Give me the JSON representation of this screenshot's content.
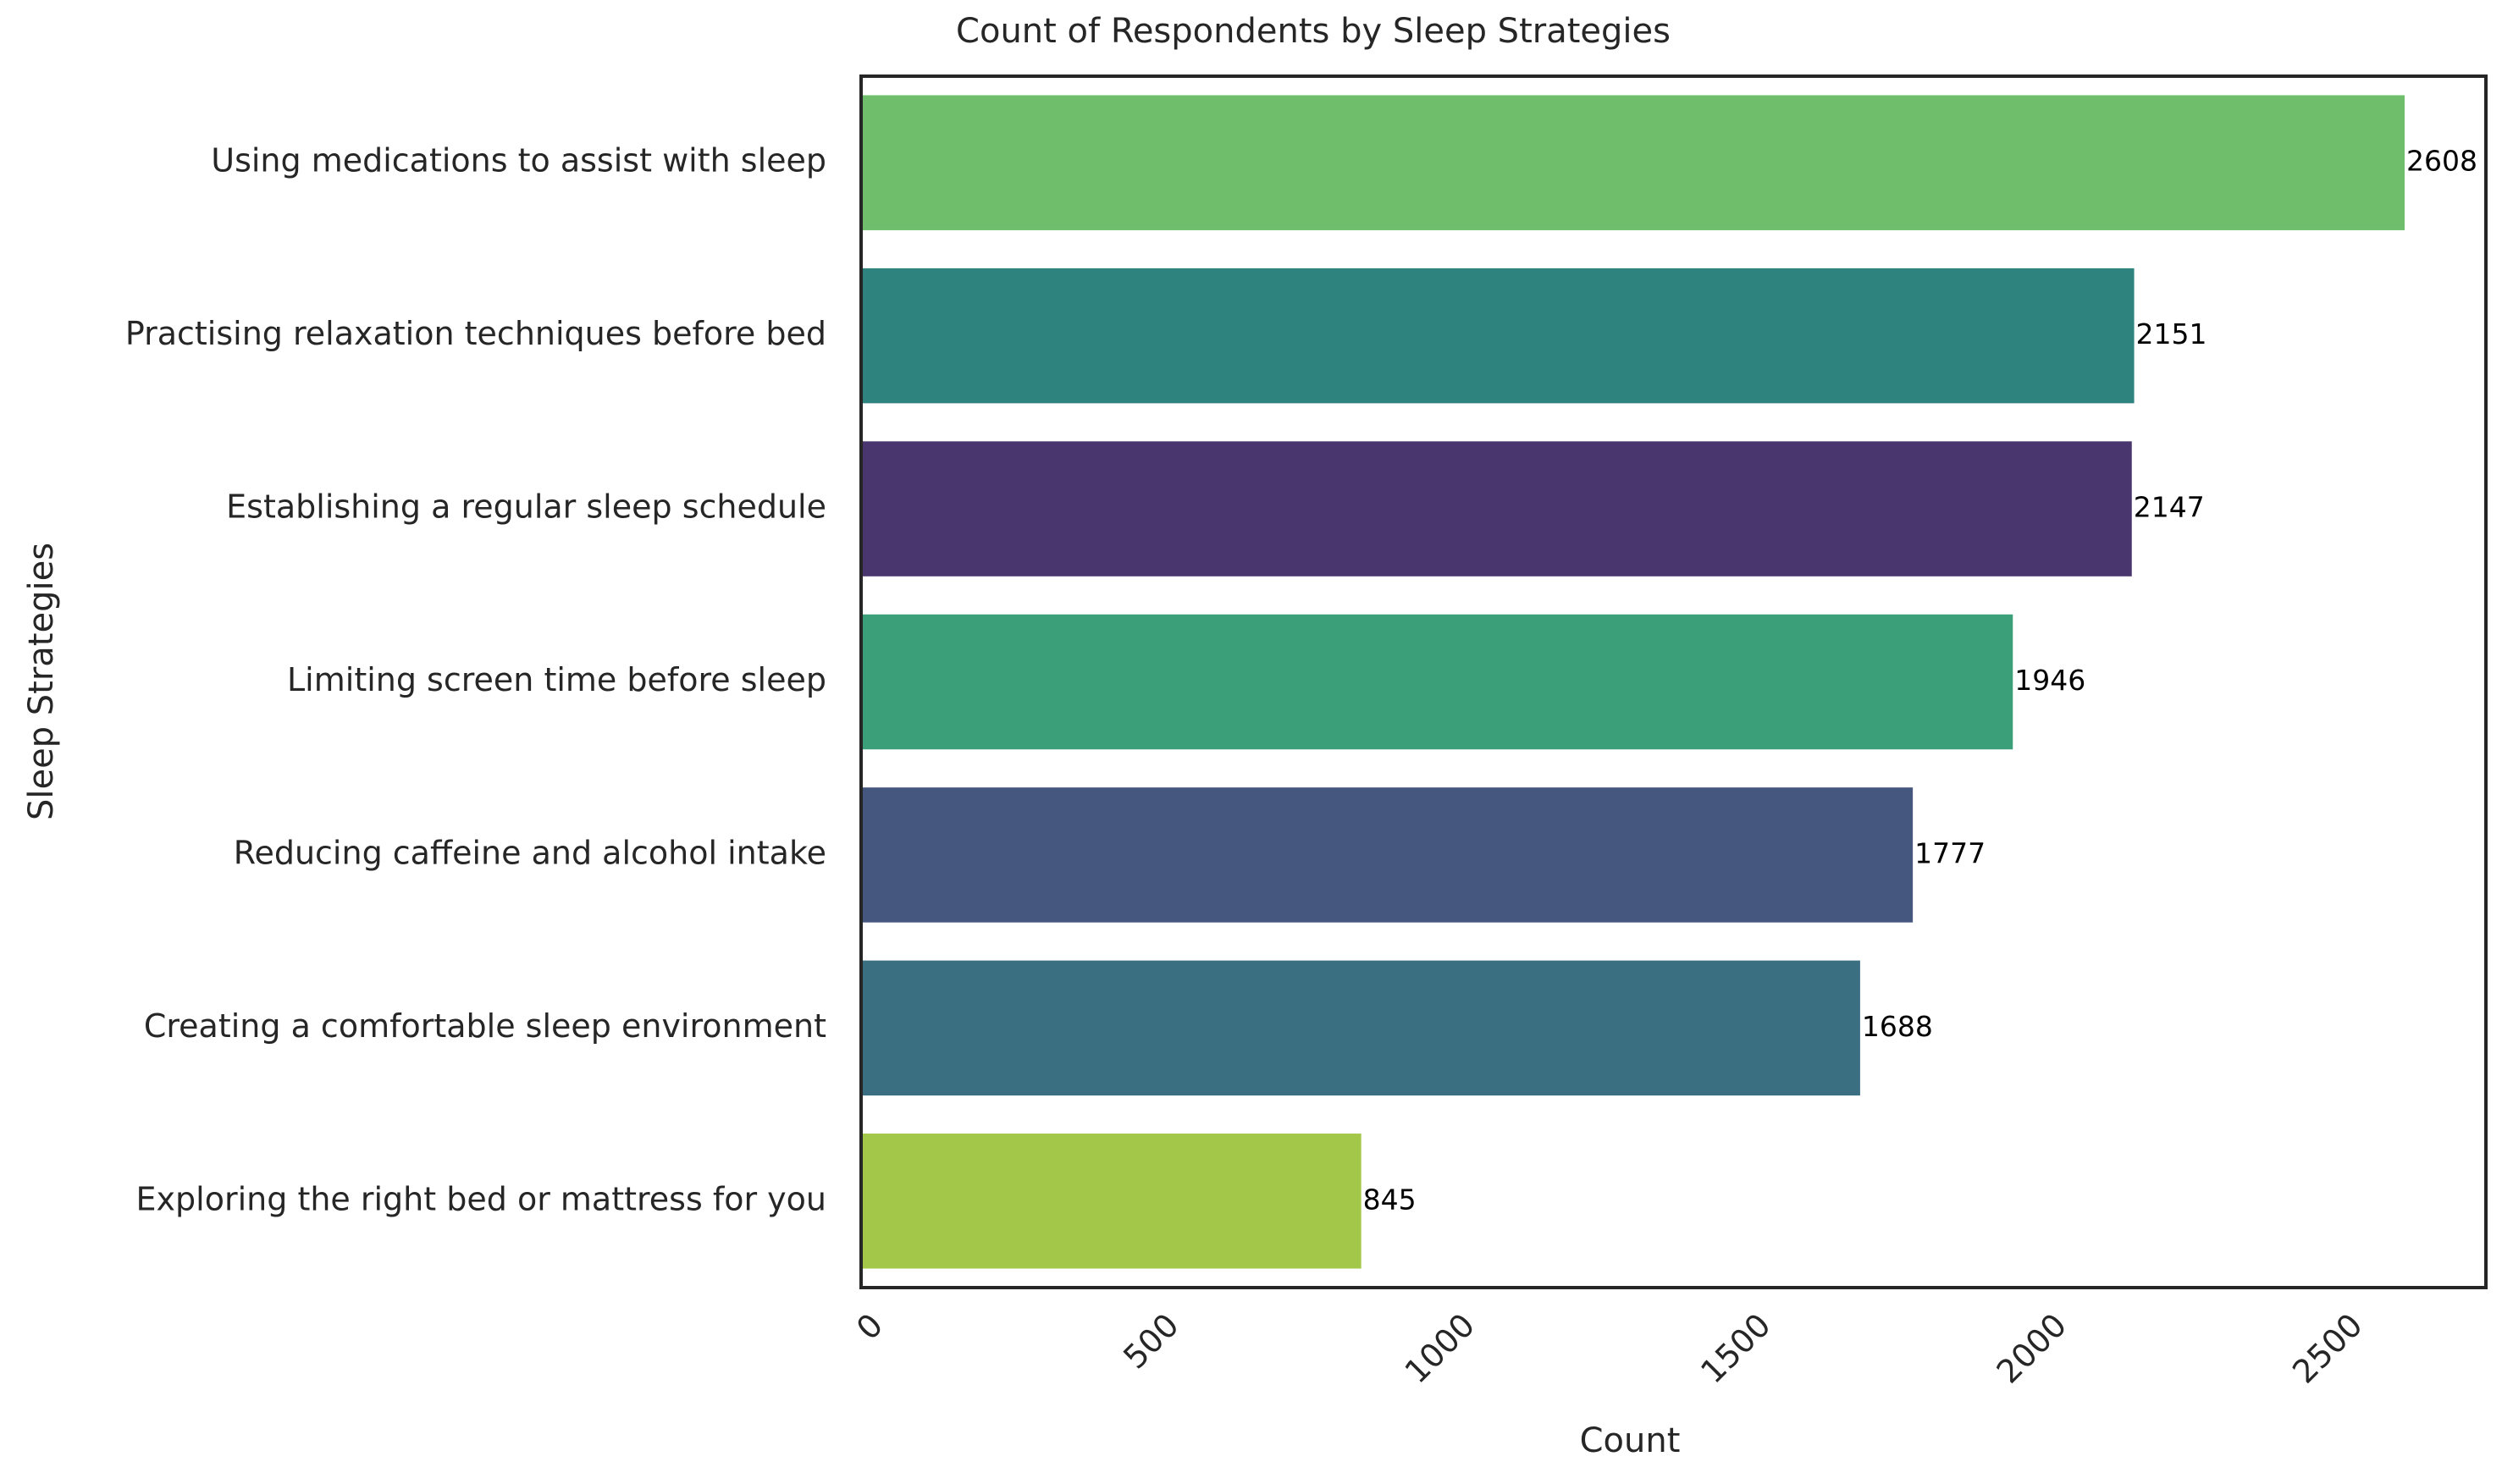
{
  "chart_data": {
    "type": "bar",
    "orientation": "horizontal",
    "title": "Count of Respondents by Sleep Strategies",
    "xlabel": "Count",
    "ylabel": "Sleep Strategies",
    "xlim": [
      0,
      2750
    ],
    "xticks": [
      0,
      500,
      1000,
      1500,
      2000,
      2500
    ],
    "grid": false,
    "legend": "none",
    "categories": [
      "Using medications to assist with sleep",
      "Practising relaxation techniques before bed",
      "Establishing a regular sleep schedule",
      "Limiting screen time before sleep",
      "Reducing caffeine and alcohol intake",
      "Creating a comfortable sleep environment",
      "Exploring the right bed or mattress for you"
    ],
    "values": [
      2608,
      2151,
      2147,
      1946,
      1777,
      1688,
      845
    ],
    "colors": [
      "#6ebe6c",
      "#2e837f",
      "#4a366f",
      "#3ba07a",
      "#46577f",
      "#3a6f81",
      "#a3c748"
    ]
  }
}
